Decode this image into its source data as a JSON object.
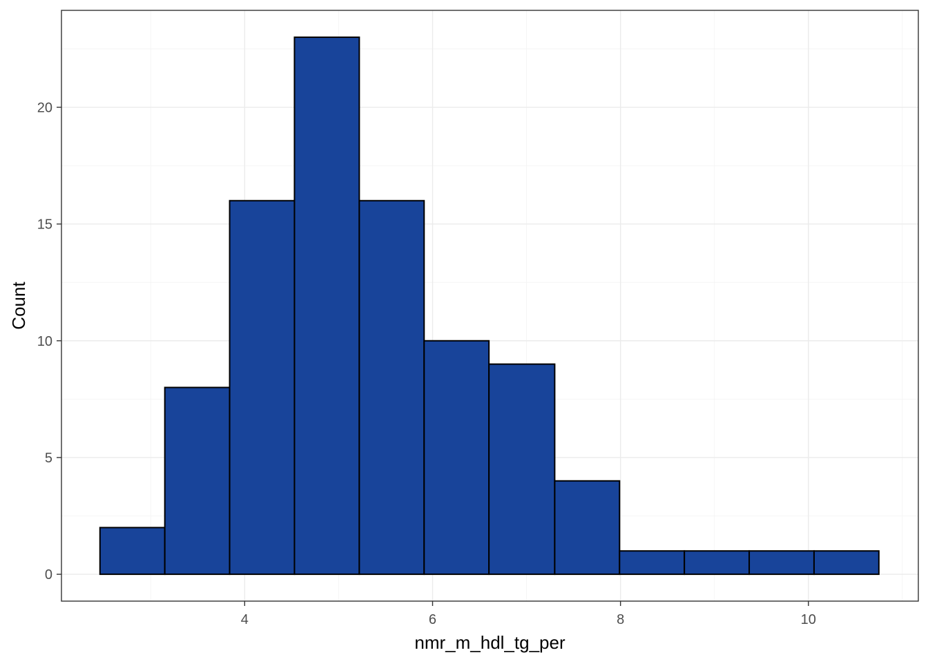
{
  "chart_data": {
    "type": "bar",
    "subtype": "histogram",
    "xlabel": "nmr_m_hdl_tg_per",
    "ylabel": "Count",
    "bins": [
      {
        "x0": 2.46,
        "x1": 3.15,
        "count": 2
      },
      {
        "x0": 3.15,
        "x1": 3.84,
        "count": 8
      },
      {
        "x0": 3.84,
        "x1": 4.53,
        "count": 16
      },
      {
        "x0": 4.53,
        "x1": 5.22,
        "count": 23
      },
      {
        "x0": 5.22,
        "x1": 5.91,
        "count": 16
      },
      {
        "x0": 5.91,
        "x1": 6.6,
        "count": 10
      },
      {
        "x0": 6.6,
        "x1": 7.3,
        "count": 9
      },
      {
        "x0": 7.3,
        "x1": 7.99,
        "count": 4
      },
      {
        "x0": 7.99,
        "x1": 8.68,
        "count": 1
      },
      {
        "x0": 8.68,
        "x1": 9.37,
        "count": 1
      },
      {
        "x0": 9.37,
        "x1": 10.06,
        "count": 1
      },
      {
        "x0": 10.06,
        "x1": 10.75,
        "count": 1
      }
    ],
    "xlim": [
      2.05,
      11.17
    ],
    "ylim": [
      -1.15,
      24.15
    ],
    "x_ticks": [
      4,
      6,
      8,
      10
    ],
    "x_tick_labels": [
      "4",
      "6",
      "8",
      "10"
    ],
    "y_ticks": [
      0,
      5,
      10,
      15,
      20
    ],
    "y_tick_labels": [
      "0",
      "5",
      "10",
      "15",
      "20"
    ],
    "grid": true,
    "legend": "none",
    "colors": {
      "bar_fill": "#18449a",
      "bar_stroke": "#000000"
    }
  }
}
